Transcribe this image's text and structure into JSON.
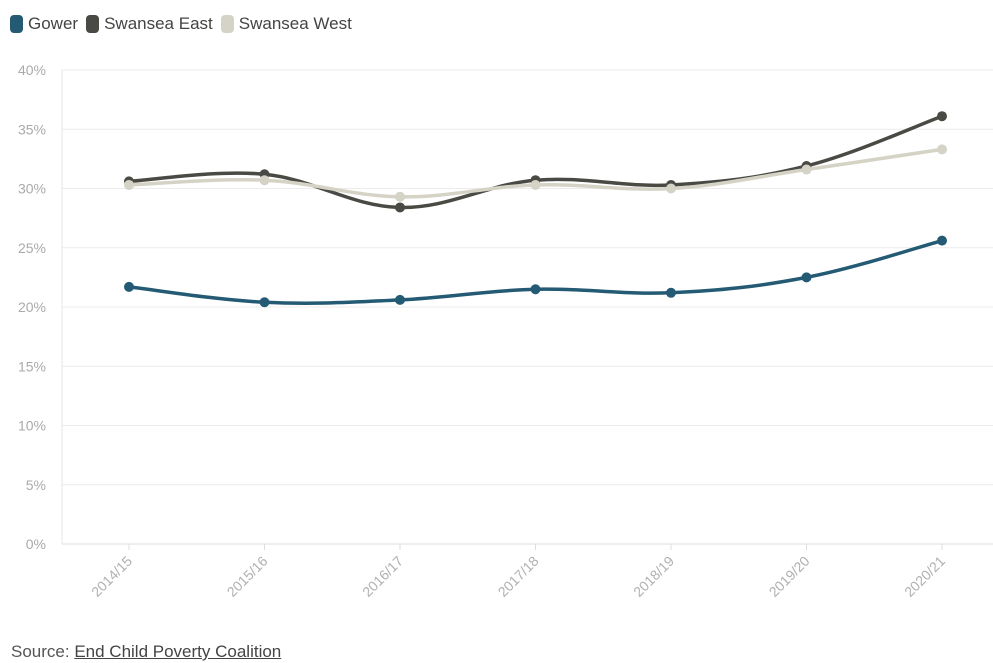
{
  "legend": [
    {
      "label": "Gower",
      "color": "#245a74"
    },
    {
      "label": "Swansea East",
      "color": "#4a4a45"
    },
    {
      "label": "Swansea West",
      "color": "#d4d3c6"
    }
  ],
  "source": {
    "prefix": "Source:",
    "link_text": "End Child Poverty Coalition"
  },
  "chart_data": {
    "type": "line",
    "x": [
      "2014/15",
      "2015/16",
      "2016/17",
      "2017/18",
      "2018/19",
      "2019/20",
      "2020/21"
    ],
    "series": [
      {
        "name": "Gower",
        "color": "#245a74",
        "values": [
          21.7,
          20.4,
          20.6,
          21.5,
          21.2,
          22.5,
          25.6
        ]
      },
      {
        "name": "Swansea East",
        "color": "#4a4a45",
        "values": [
          30.6,
          31.2,
          28.4,
          30.7,
          30.3,
          31.9,
          36.1
        ]
      },
      {
        "name": "Swansea West",
        "color": "#d4d3c6",
        "values": [
          30.3,
          30.7,
          29.3,
          30.3,
          30.0,
          31.6,
          33.3
        ]
      }
    ],
    "yticks": [
      "0%",
      "5%",
      "10%",
      "15%",
      "20%",
      "25%",
      "30%",
      "35%",
      "40%"
    ],
    "ylim": [
      0,
      40
    ],
    "grid": true,
    "legend_position": "top-left"
  }
}
